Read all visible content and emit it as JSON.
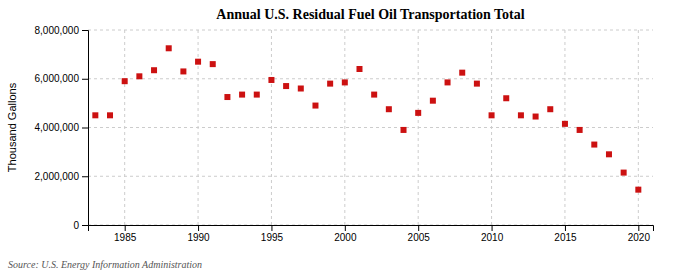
{
  "chart_data": {
    "type": "scatter",
    "title": "Annual U.S. Residual Fuel Oil Transportation Total",
    "ylabel": "Thousand Gallons",
    "annotation": "Source: U.S. Energy Information Administration",
    "x": [
      1983,
      1984,
      1985,
      1986,
      1987,
      1988,
      1989,
      1990,
      1991,
      1992,
      1993,
      1994,
      1995,
      1996,
      1997,
      1998,
      1999,
      2000,
      2001,
      2002,
      2003,
      2004,
      2005,
      2006,
      2007,
      2008,
      2009,
      2010,
      2011,
      2012,
      2013,
      2014,
      2015,
      2016,
      2017,
      2018,
      2019,
      2020
    ],
    "values": [
      4500000,
      4500000,
      5900000,
      6100000,
      6350000,
      7250000,
      6300000,
      6700000,
      6600000,
      5250000,
      5350000,
      5350000,
      5950000,
      5700000,
      5600000,
      4900000,
      5800000,
      5850000,
      6400000,
      5350000,
      4750000,
      3900000,
      4600000,
      5100000,
      5850000,
      6250000,
      5800000,
      4500000,
      5200000,
      4500000,
      4450000,
      4750000,
      4150000,
      3900000,
      3300000,
      2900000,
      2150000,
      1450000
    ],
    "color": "#cc1111",
    "marker": "square",
    "xlim": [
      1982.5,
      2021
    ],
    "ylim": [
      0,
      8000000
    ],
    "xticks": [
      1985,
      1990,
      1995,
      2000,
      2005,
      2010,
      2015,
      2020
    ],
    "yticks": [
      0,
      {
        "value": 2000000,
        "label": "2,000,000"
      },
      {
        "value": 4000000,
        "label": "4,000,000"
      },
      {
        "value": 6000000,
        "label": "6,000,000"
      },
      {
        "value": 8000000,
        "label": "8,000,000"
      }
    ],
    "grid": true
  }
}
